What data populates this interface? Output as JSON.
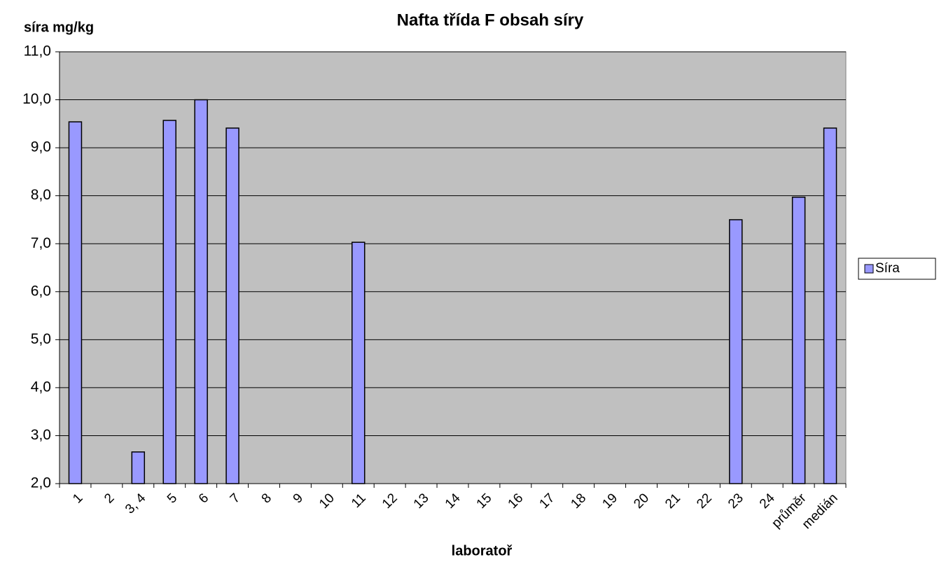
{
  "chart_data": {
    "type": "bar",
    "title": "Nafta  třída F   obsah síry",
    "y_label": "síra mg/kg",
    "x_label": "laboratoř",
    "categories": [
      "1",
      "2",
      "3, 4",
      "5",
      "6",
      "7",
      "8",
      "9",
      "10",
      "11",
      "12",
      "13",
      "14",
      "15",
      "16",
      "17",
      "18",
      "19",
      "20",
      "21",
      "22",
      "23",
      "24",
      "průměr",
      "medián"
    ],
    "series": [
      {
        "name": "Síra",
        "color": "#9999ff",
        "values": [
          9.54,
          null,
          2.66,
          9.57,
          10.0,
          9.41,
          null,
          null,
          null,
          7.03,
          null,
          null,
          null,
          null,
          null,
          null,
          null,
          null,
          null,
          null,
          null,
          7.5,
          null,
          7.97,
          9.41
        ]
      }
    ],
    "ylim": [
      2,
      11
    ],
    "yticks": [
      {
        "value": 2,
        "label": "2,0"
      },
      {
        "value": 3,
        "label": "3,0"
      },
      {
        "value": 4,
        "label": "4,0"
      },
      {
        "value": 5,
        "label": "5,0"
      },
      {
        "value": 6,
        "label": "6,0"
      },
      {
        "value": 7,
        "label": "7,0"
      },
      {
        "value": 8,
        "label": "8,0"
      },
      {
        "value": 9,
        "label": "9,0"
      },
      {
        "value": 10,
        "label": "10,0"
      },
      {
        "value": 11,
        "label": "11,0"
      }
    ],
    "grid": true,
    "legend": "right"
  }
}
